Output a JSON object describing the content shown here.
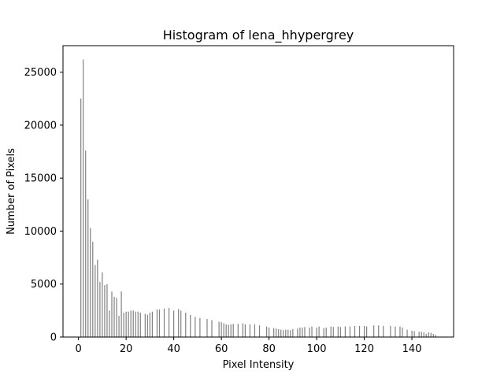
{
  "chart_data": {
    "type": "bar",
    "title": "Histogram of lena_hhypergrey",
    "xlabel": "Pixel Intensity",
    "ylabel": "Number of Pixels",
    "xlim": [
      -6.5,
      157.5
    ],
    "ylim": [
      0,
      27500
    ],
    "xticks": [
      0,
      20,
      40,
      60,
      80,
      100,
      120,
      140
    ],
    "yticks": [
      0,
      5000,
      10000,
      15000,
      20000,
      25000
    ],
    "bar_color": "#808080",
    "grid": false,
    "x": [
      1,
      2,
      3,
      4,
      5,
      6,
      7,
      8,
      9,
      10,
      11,
      12,
      13,
      14,
      15,
      16,
      17,
      18,
      19,
      20,
      21,
      22,
      23,
      24,
      25,
      26,
      28,
      29,
      30,
      31,
      33,
      34,
      36,
      38,
      40,
      42,
      43,
      45,
      47,
      49,
      51,
      54,
      56,
      59,
      60,
      61,
      62,
      63,
      64,
      65,
      67,
      69,
      70,
      72,
      74,
      76,
      79,
      80,
      82,
      83,
      84,
      85,
      86,
      87,
      88,
      89,
      90,
      92,
      93,
      94,
      95,
      97,
      98,
      100,
      101,
      103,
      104,
      106,
      107,
      109,
      110,
      112,
      114,
      116,
      118,
      120,
      121,
      124,
      126,
      128,
      131,
      133,
      135,
      136,
      138,
      140,
      141,
      143,
      144,
      145,
      146,
      147,
      148,
      149,
      150
    ],
    "values": [
      22500,
      26200,
      17600,
      13000,
      10300,
      9000,
      6800,
      7300,
      5200,
      6100,
      4900,
      5000,
      2500,
      4300,
      3800,
      3700,
      2000,
      4300,
      2300,
      2400,
      2400,
      2500,
      2500,
      2400,
      2400,
      2300,
      2200,
      2100,
      2300,
      2400,
      2600,
      2600,
      2700,
      2750,
      2500,
      2650,
      2500,
      2300,
      2100,
      1900,
      1800,
      1700,
      1600,
      1450,
      1400,
      1300,
      1200,
      1150,
      1200,
      1250,
      1250,
      1300,
      1200,
      1200,
      1200,
      1100,
      1000,
      900,
      850,
      800,
      750,
      700,
      650,
      700,
      700,
      650,
      750,
      800,
      900,
      900,
      950,
      900,
      1000,
      900,
      1000,
      850,
      900,
      1000,
      950,
      1000,
      950,
      1000,
      1000,
      1050,
      1050,
      1050,
      1000,
      1100,
      1100,
      1050,
      1050,
      1000,
      1000,
      900,
      700,
      600,
      550,
      500,
      500,
      450,
      300,
      450,
      400,
      300,
      200
    ]
  }
}
